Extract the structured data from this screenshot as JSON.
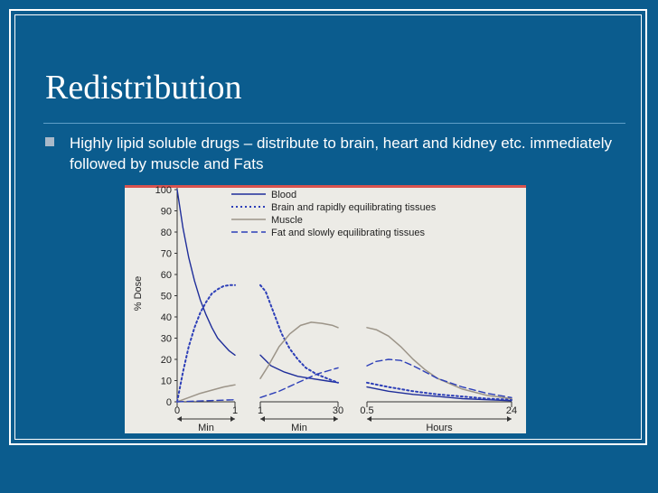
{
  "slide": {
    "title": "Redistribution",
    "bullet": "Highly lipid soluble drugs – distribute to brain, heart and kidney etc. immediately followed by muscle and Fats"
  },
  "colors": {
    "background": "#0b5c8e",
    "blood": "#1f2e9a",
    "brain": "#2d3fb8",
    "muscle": "#9c9488",
    "fat": "#2d3fb8"
  },
  "chart_data": {
    "type": "line",
    "ylabel": "% Dose",
    "ylim": [
      0,
      100
    ],
    "yticks": [
      "0",
      "10",
      "20",
      "30",
      "40",
      "50",
      "60",
      "70",
      "80",
      "90",
      "100"
    ],
    "legend": {
      "placement": "top",
      "entries": [
        "Blood",
        "Brain and rapidly equilibrating tissues",
        "Muscle",
        "Fat and slowly equilibrating tissues"
      ]
    },
    "panels": [
      {
        "xlabel": "Min",
        "xticks": [
          "0",
          "1"
        ],
        "series": [
          {
            "name": "Blood",
            "x": [
              0,
              0.1,
              0.2,
              0.3,
              0.4,
              0.5,
              0.6,
              0.7,
              0.8,
              0.9,
              1.0
            ],
            "y": [
              100,
              82,
              68,
              57,
              48,
              41,
              35,
              30,
              27,
              24,
              22
            ]
          },
          {
            "name": "Brain and rapidly equilibrating tissues",
            "x": [
              0,
              0.1,
              0.2,
              0.3,
              0.4,
              0.5,
              0.6,
              0.7,
              0.8,
              0.9,
              1.0
            ],
            "y": [
              0,
              14,
              26,
              35,
              42,
              47,
              51,
              53,
              54.5,
              55,
              55
            ]
          },
          {
            "name": "Muscle",
            "x": [
              0,
              0.2,
              0.4,
              0.6,
              0.8,
              1.0
            ],
            "y": [
              0,
              2,
              4,
              5.5,
              7,
              8
            ]
          },
          {
            "name": "Fat and slowly equilibrating tissues",
            "x": [
              0,
              0.5,
              1.0
            ],
            "y": [
              0,
              0.5,
              1
            ]
          }
        ]
      },
      {
        "xlabel": "Min",
        "xticks": [
          "1",
          "30"
        ],
        "series": [
          {
            "name": "Blood",
            "x": [
              1,
              5,
              10,
              15,
              20,
              25,
              30
            ],
            "y": [
              22,
              17,
              14,
              12,
              11,
              10,
              9
            ]
          },
          {
            "name": "Brain and rapidly equilibrating tissues",
            "x": [
              1,
              3,
              6,
              9,
              12,
              15,
              18,
              22,
              26,
              30
            ],
            "y": [
              55,
              52,
              42,
              32,
              25,
              20,
              16,
              13,
              11,
              9
            ]
          },
          {
            "name": "Muscle",
            "x": [
              1,
              4,
              8,
              12,
              16,
              20,
              24,
              28,
              30
            ],
            "y": [
              11,
              17,
              26,
              32,
              36,
              37.5,
              37,
              36,
              35
            ]
          },
          {
            "name": "Fat and slowly equilibrating tissues",
            "x": [
              1,
              8,
              15,
              22,
              30
            ],
            "y": [
              2,
              5,
              9,
              13,
              16
            ]
          }
        ]
      },
      {
        "xlabel": "Hours",
        "xticks": [
          "0.5",
          "24"
        ],
        "series": [
          {
            "name": "Blood",
            "x": [
              0.5,
              4,
              8,
              12,
              16,
              20,
              24
            ],
            "y": [
              7,
              5,
              3.5,
              2.5,
              1.5,
              1,
              0.5
            ]
          },
          {
            "name": "Brain and rapidly equilibrating tissues",
            "x": [
              0.5,
              4,
              8,
              12,
              16,
              20,
              24
            ],
            "y": [
              9,
              7,
              5,
              3.5,
              2.5,
              1.5,
              1
            ]
          },
          {
            "name": "Muscle",
            "x": [
              0.5,
              2,
              4,
              6,
              8,
              10,
              12,
              16,
              20,
              24
            ],
            "y": [
              35,
              34,
              31,
              26,
              20,
              15,
              11,
              6,
              3,
              1.5
            ]
          },
          {
            "name": "Fat and slowly equilibrating tissues",
            "x": [
              0.5,
              2,
              4,
              6,
              8,
              10,
              12,
              16,
              20,
              24
            ],
            "y": [
              17,
              19,
              20,
              19.5,
              17,
              14,
              11,
              7,
              4,
              2
            ]
          }
        ]
      }
    ]
  }
}
